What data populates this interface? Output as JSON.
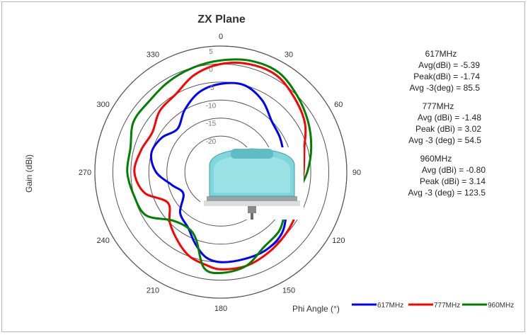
{
  "chart_data": {
    "type": "polar",
    "title": "ZX Plane",
    "ylabel": "Gain (dBi)",
    "xlabel": "Phi Angle (°)",
    "radial_range": [
      -30,
      5
    ],
    "radial_ticks": [
      "5",
      "0",
      "-5",
      "-10",
      "-15",
      "-20",
      "-25"
    ],
    "angle_ticks": [
      "0",
      "30",
      "60",
      "90",
      "120",
      "150",
      "180",
      "210",
      "240",
      "270",
      "300",
      "330"
    ],
    "angle_direction": "clockwise",
    "legend_position": "bottom-right",
    "grid": true,
    "series": [
      {
        "name": "617MHz",
        "color": "#0000ff",
        "angles": [
          0,
          15,
          30,
          45,
          60,
          75,
          90,
          105,
          120,
          135,
          150,
          165,
          180,
          190,
          200,
          210,
          225,
          240,
          255,
          270,
          285,
          300,
          315,
          330,
          345
        ],
        "gains": [
          -5.5,
          -5,
          -7,
          -10,
          -11,
          -12,
          -13,
          -12,
          -9,
          -6,
          -5,
          -5,
          -5,
          -6,
          -9,
          -12,
          -14,
          -18,
          -16,
          -12,
          -10,
          -11,
          -13,
          -10,
          -7
        ]
      },
      {
        "name": "777MHz",
        "color": "#ff0000",
        "angles": [
          0,
          15,
          30,
          45,
          60,
          75,
          90,
          105,
          120,
          135,
          150,
          165,
          180,
          190,
          200,
          210,
          225,
          240,
          255,
          270,
          285,
          300,
          315,
          330,
          345
        ],
        "gains": [
          0,
          1,
          1,
          -1,
          -3,
          -6,
          -7,
          -7,
          -6,
          -5,
          -4,
          -3,
          -3,
          -4,
          -5,
          -7,
          -10,
          -13,
          -8,
          -6,
          -7,
          -8,
          -6,
          -5,
          -2
        ]
      },
      {
        "name": "960MHz",
        "color": "#008000",
        "angles": [
          0,
          15,
          30,
          45,
          60,
          75,
          90,
          105,
          120,
          135,
          150,
          165,
          180,
          190,
          200,
          210,
          225,
          240,
          255,
          270,
          285,
          300,
          315,
          330,
          345
        ],
        "gains": [
          1,
          2,
          2,
          0,
          -2,
          -4,
          -6,
          -8,
          -9,
          -7,
          -6,
          -3,
          -2,
          -3,
          -10,
          -12,
          -11,
          -6,
          -5,
          -4,
          -4,
          -2,
          -2,
          -1,
          0
        ]
      }
    ]
  },
  "stats": [
    {
      "freq": "617MHz",
      "lines": [
        "Avg(dBi) = -5.39",
        "Peak(dBi) = -1.74",
        "Avg -3(deg) = 85.5"
      ]
    },
    {
      "freq": "777MHz",
      "lines": [
        "Avg (dBi) =  -1.48",
        "Peak (dBi) =  3.02",
        "Avg -3 (deg) =  54.5"
      ]
    },
    {
      "freq": "960MHz",
      "lines": [
        "Avg (dBi) = -0.80",
        "Peak (dBi) = 3.14",
        "Avg -3 (deg) = 123.5"
      ]
    }
  ],
  "product_image": {
    "description": "antenna"
  }
}
